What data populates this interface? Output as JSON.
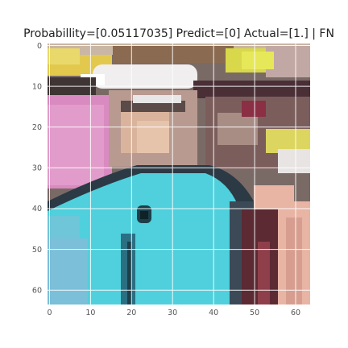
{
  "figure": {
    "title": "Probabillity=[0.05117035] Predict=[0] Actual=[1.] | FN"
  },
  "axes": {
    "x_ticks": [
      "0",
      "10",
      "20",
      "30",
      "40",
      "50",
      "60"
    ],
    "y_ticks": [
      "0",
      "10",
      "20",
      "30",
      "40",
      "50",
      "60"
    ],
    "xlim": [
      -0.5,
      63.5
    ],
    "ylim": [
      63.5,
      -0.5
    ],
    "grid": true,
    "grid_color": "#ffffff"
  },
  "image": {
    "description_colors": {
      "cyan_shirt": "#4fd0dc",
      "pink_left": "#d98ac0",
      "dark_outline": "#2b3a45",
      "yellow_top": "#d8d84a",
      "skin": "#d9b39b",
      "maroon_right": "#5b2a33",
      "peach_right": "#e8b4a4"
    }
  }
}
